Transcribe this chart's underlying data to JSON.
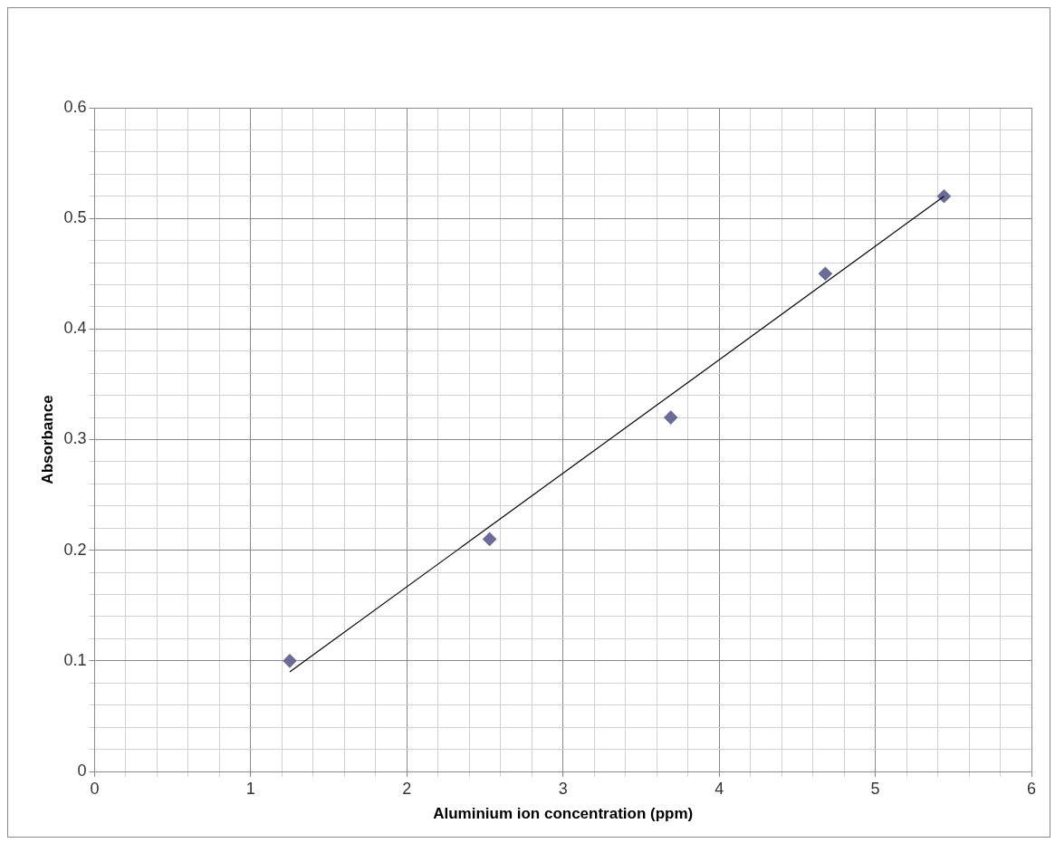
{
  "chart_data": {
    "type": "scatter",
    "xlabel": "Aluminium ion concentration (ppm)",
    "ylabel": "Absorbance",
    "series": [
      {
        "type": "scatter",
        "color": "#6b6b9a",
        "x": [
          1.25,
          2.53,
          3.69,
          4.68,
          5.44
        ],
        "values": [
          0.1,
          0.21,
          0.32,
          0.45,
          0.52
        ]
      },
      {
        "type": "line",
        "color": "#000000",
        "x": [
          1.25,
          5.44
        ],
        "values": [
          0.09,
          0.52
        ],
        "marker": "none"
      }
    ],
    "marker": "diamond",
    "grid": true,
    "legend": false,
    "xlim": [
      0,
      6
    ],
    "ylim": [
      0,
      0.6
    ],
    "xticks": [
      0,
      {
        "value": 0.2,
        "label": null
      },
      {
        "value": 0.4,
        "label": null
      },
      {
        "value": 0.6,
        "label": null
      },
      {
        "value": 0.8,
        "label": null
      },
      1,
      {
        "value": 1.2,
        "label": null
      },
      {
        "value": 1.4,
        "label": null
      },
      {
        "value": 1.6,
        "label": null
      },
      {
        "value": 1.8,
        "label": null
      },
      2,
      {
        "value": 2.2,
        "label": null
      },
      {
        "value": 2.4,
        "label": null
      },
      {
        "value": 2.6,
        "label": null
      },
      {
        "value": 2.8,
        "label": null
      },
      3,
      {
        "value": 3.2,
        "label": null
      },
      {
        "value": 3.4,
        "label": null
      },
      {
        "value": 3.6,
        "label": null
      },
      {
        "value": 3.8,
        "label": null
      },
      4,
      {
        "value": 4.2,
        "label": null
      },
      {
        "value": 4.4,
        "label": null
      },
      {
        "value": 4.6,
        "label": null
      },
      {
        "value": 4.8,
        "label": null
      },
      5,
      {
        "value": 5.2,
        "label": null
      },
      {
        "value": 5.4,
        "label": null
      },
      {
        "value": 5.6,
        "label": null
      },
      {
        "value": 5.8,
        "label": null
      },
      6
    ],
    "yticks": [
      0,
      {
        "value": 0.02,
        "label": null
      },
      {
        "value": 0.04,
        "label": null
      },
      {
        "value": 0.06,
        "label": null
      },
      {
        "value": 0.08,
        "label": null
      },
      0.1,
      {
        "value": 0.12,
        "label": null
      },
      {
        "value": 0.14,
        "label": null
      },
      {
        "value": 0.16,
        "label": null
      },
      {
        "value": 0.18,
        "label": null
      },
      0.2,
      {
        "value": 0.22,
        "label": null
      },
      {
        "value": 0.24,
        "label": null
      },
      {
        "value": 0.26,
        "label": null
      },
      {
        "value": 0.28,
        "label": null
      },
      0.3,
      {
        "value": 0.32,
        "label": null
      },
      {
        "value": 0.34,
        "label": null
      },
      {
        "value": 0.36,
        "label": null
      },
      {
        "value": 0.38,
        "label": null
      },
      0.4,
      {
        "value": 0.42,
        "label": null
      },
      {
        "value": 0.44,
        "label": null
      },
      {
        "value": 0.46,
        "label": null
      },
      {
        "value": 0.48,
        "label": null
      },
      0.5,
      {
        "value": 0.52,
        "label": null
      },
      {
        "value": 0.54,
        "label": null
      },
      {
        "value": 0.56,
        "label": null
      },
      {
        "value": 0.58,
        "label": null
      },
      0.6
    ]
  }
}
